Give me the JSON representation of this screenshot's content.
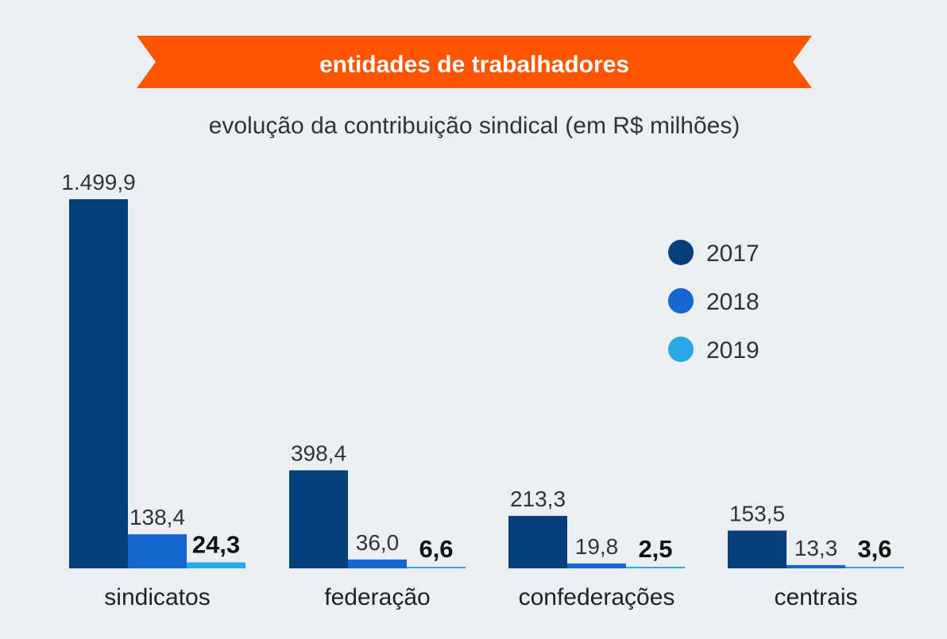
{
  "banner": {
    "title": "entidades de trabalhadores",
    "color": "#ff5400",
    "text_color": "#ffffff"
  },
  "subtitle": "evolução da contribuição sindical (em R$ milhões)",
  "chart_data": {
    "type": "bar",
    "title": "entidades de trabalhadores",
    "subtitle": "evolução da contribuição sindical (em R$ milhões)",
    "categories": [
      "sindicatos",
      "federação",
      "confederações",
      "centrais"
    ],
    "series": [
      {
        "name": "2017",
        "color": "#063f7a",
        "values": [
          1499.9,
          398.4,
          213.3,
          153.5
        ],
        "labels": [
          "1.499,9",
          "398,4",
          "213,3",
          "153,5"
        ],
        "label_bold": false
      },
      {
        "name": "2018",
        "color": "#1666cf",
        "values": [
          138.4,
          36.0,
          19.8,
          13.3
        ],
        "labels": [
          "138,4",
          "36,0",
          "19,8",
          "13,3"
        ],
        "label_bold": false
      },
      {
        "name": "2019",
        "color": "#2aa8e3",
        "values": [
          24.3,
          6.6,
          2.5,
          3.6
        ],
        "labels": [
          "24,3",
          "6,6",
          "2,5",
          "3,6"
        ],
        "label_bold": true
      }
    ],
    "ylim": [
      0,
      1499.9
    ],
    "xlabel": "",
    "ylabel": "",
    "grid": false,
    "legend_position": "right"
  }
}
